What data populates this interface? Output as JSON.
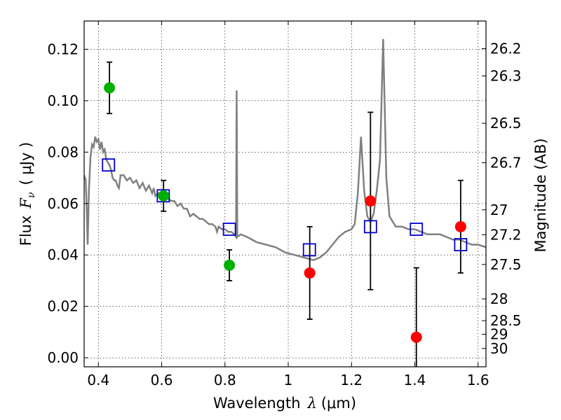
{
  "chart_data": {
    "type": "scatter",
    "xlabel_prefix": "Wavelength",
    "xlabel_symbol": "λ",
    "xlabel_unit": "(μm)",
    "ylabel_prefix": "Flux",
    "ylabel_symbol": "F",
    "ylabel_subscript": "ν",
    "ylabel_unit": "( μJy )",
    "y2label": "Magnitude (AB)",
    "xlim": [
      0.355,
      1.625
    ],
    "ylim": [
      -0.0035,
      0.131
    ],
    "x_ticks": [
      0.4,
      0.6,
      0.8,
      1.0,
      1.2,
      1.4,
      1.6
    ],
    "x_tick_labels": [
      "0.4",
      "0.6",
      "0.8",
      "1",
      "1.2",
      "1.4",
      "1.6"
    ],
    "y_ticks": [
      0.0,
      0.02,
      0.04,
      0.06,
      0.08,
      0.1,
      0.12
    ],
    "y_tick_labels": [
      "0.00",
      "0.02",
      "0.04",
      "0.06",
      "0.08",
      "0.10",
      "0.12"
    ],
    "mag_ticks": [
      26.2,
      26.3,
      26.5,
      26.7,
      27,
      27.2,
      27.5,
      28,
      28.5,
      29,
      30
    ],
    "mag_tick_labels": [
      "26.2",
      "26.3",
      "26.5",
      "26.7",
      "27",
      "27.2",
      "27.5",
      "28",
      "28.5",
      "29",
      "30"
    ],
    "grid": true,
    "colors": {
      "template": "#808080",
      "detected": "#00b000",
      "weak": "#ff0000",
      "model": "#0000cc",
      "errorbar": "#000000"
    },
    "template_spectrum": [
      [
        0.355,
        0.071
      ],
      [
        0.36,
        0.069
      ],
      [
        0.363,
        0.058
      ],
      [
        0.366,
        0.044
      ],
      [
        0.37,
        0.065
      ],
      [
        0.375,
        0.078
      ],
      [
        0.38,
        0.083
      ],
      [
        0.385,
        0.082
      ],
      [
        0.39,
        0.086
      ],
      [
        0.395,
        0.084
      ],
      [
        0.4,
        0.085
      ],
      [
        0.405,
        0.081
      ],
      [
        0.41,
        0.084
      ],
      [
        0.415,
        0.08
      ],
      [
        0.42,
        0.081
      ],
      [
        0.425,
        0.077
      ],
      [
        0.43,
        0.076
      ],
      [
        0.435,
        0.075
      ],
      [
        0.44,
        0.073
      ],
      [
        0.445,
        0.07
      ],
      [
        0.45,
        0.069
      ],
      [
        0.455,
        0.069
      ],
      [
        0.46,
        0.067
      ],
      [
        0.465,
        0.066
      ],
      [
        0.47,
        0.071
      ],
      [
        0.48,
        0.071
      ],
      [
        0.49,
        0.069
      ],
      [
        0.5,
        0.07
      ],
      [
        0.51,
        0.068
      ],
      [
        0.52,
        0.069
      ],
      [
        0.53,
        0.066
      ],
      [
        0.54,
        0.068
      ],
      [
        0.55,
        0.065
      ],
      [
        0.56,
        0.067
      ],
      [
        0.57,
        0.064
      ],
      [
        0.575,
        0.066
      ],
      [
        0.58,
        0.063
      ],
      [
        0.59,
        0.064
      ],
      [
        0.6,
        0.062
      ],
      [
        0.61,
        0.064
      ],
      [
        0.62,
        0.062
      ],
      [
        0.63,
        0.061
      ],
      [
        0.64,
        0.061
      ],
      [
        0.65,
        0.059
      ],
      [
        0.66,
        0.06
      ],
      [
        0.67,
        0.058
      ],
      [
        0.68,
        0.058
      ],
      [
        0.69,
        0.055
      ],
      [
        0.7,
        0.056
      ],
      [
        0.71,
        0.055
      ],
      [
        0.72,
        0.054
      ],
      [
        0.73,
        0.054
      ],
      [
        0.74,
        0.053
      ],
      [
        0.75,
        0.052
      ],
      [
        0.76,
        0.052
      ],
      [
        0.77,
        0.051
      ],
      [
        0.775,
        0.049
      ],
      [
        0.78,
        0.051
      ],
      [
        0.79,
        0.05
      ],
      [
        0.8,
        0.05
      ],
      [
        0.81,
        0.049
      ],
      [
        0.82,
        0.049
      ],
      [
        0.83,
        0.048
      ],
      [
        0.835,
        0.047
      ],
      [
        0.837,
        0.104
      ],
      [
        0.839,
        0.047
      ],
      [
        0.85,
        0.048
      ],
      [
        0.87,
        0.047
      ],
      [
        0.9,
        0.045
      ],
      [
        0.93,
        0.044
      ],
      [
        0.96,
        0.043
      ],
      [
        0.99,
        0.041
      ],
      [
        1.02,
        0.04
      ],
      [
        1.05,
        0.039
      ],
      [
        1.08,
        0.038
      ],
      [
        1.1,
        0.039
      ],
      [
        1.12,
        0.041
      ],
      [
        1.14,
        0.044
      ],
      [
        1.16,
        0.047
      ],
      [
        1.18,
        0.049
      ],
      [
        1.2,
        0.05
      ],
      [
        1.21,
        0.052
      ],
      [
        1.22,
        0.064
      ],
      [
        1.23,
        0.086
      ],
      [
        1.24,
        0.065
      ],
      [
        1.25,
        0.055
      ],
      [
        1.26,
        0.053
      ],
      [
        1.27,
        0.056
      ],
      [
        1.28,
        0.065
      ],
      [
        1.29,
        0.077
      ],
      [
        1.3,
        0.124
      ],
      [
        1.31,
        0.07
      ],
      [
        1.32,
        0.055
      ],
      [
        1.34,
        0.051
      ],
      [
        1.36,
        0.051
      ],
      [
        1.38,
        0.05
      ],
      [
        1.4,
        0.05
      ],
      [
        1.42,
        0.049
      ],
      [
        1.44,
        0.048
      ],
      [
        1.46,
        0.048
      ],
      [
        1.48,
        0.048
      ],
      [
        1.5,
        0.047
      ],
      [
        1.52,
        0.046
      ],
      [
        1.54,
        0.046
      ],
      [
        1.56,
        0.045
      ],
      [
        1.58,
        0.044
      ],
      [
        1.6,
        0.044
      ],
      [
        1.625,
        0.043
      ]
    ],
    "observed": [
      {
        "x": 0.435,
        "y": 0.105,
        "err": 0.01,
        "kind": "detected"
      },
      {
        "x": 0.606,
        "y": 0.063,
        "err": 0.006,
        "kind": "detected"
      },
      {
        "x": 0.814,
        "y": 0.036,
        "err": 0.006,
        "kind": "detected"
      },
      {
        "x": 1.068,
        "y": 0.033,
        "err": 0.018,
        "kind": "weak"
      },
      {
        "x": 1.26,
        "y": 0.061,
        "err": 0.0345,
        "kind": "weak"
      },
      {
        "x": 1.405,
        "y": 0.008,
        "err": 0.027,
        "kind": "weak"
      },
      {
        "x": 1.545,
        "y": 0.051,
        "err": 0.018,
        "kind": "weak"
      }
    ],
    "model_photometry": [
      {
        "x": 0.432,
        "y": 0.075
      },
      {
        "x": 0.605,
        "y": 0.063
      },
      {
        "x": 0.814,
        "y": 0.05
      },
      {
        "x": 1.067,
        "y": 0.042
      },
      {
        "x": 1.26,
        "y": 0.051
      },
      {
        "x": 1.405,
        "y": 0.05
      },
      {
        "x": 1.545,
        "y": 0.044
      }
    ]
  }
}
